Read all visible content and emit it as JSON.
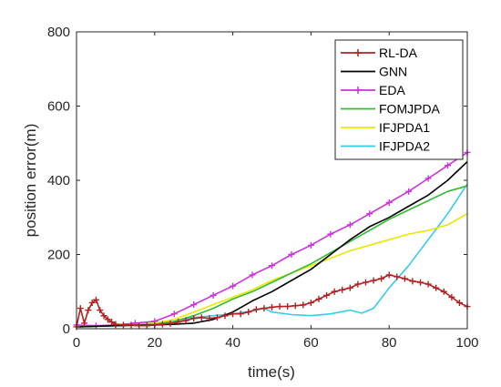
{
  "chart_data": {
    "type": "line",
    "title": "",
    "xlabel": "time(s)",
    "ylabel": "position error(m)",
    "xlim": [
      0,
      100
    ],
    "ylim": [
      0,
      800
    ],
    "xticks": [
      0,
      20,
      40,
      60,
      80,
      100
    ],
    "yticks": [
      0,
      200,
      400,
      600,
      800
    ],
    "grid": false,
    "legend_position": "top-right",
    "series": [
      {
        "name": "RL-DA",
        "color": "#b22222",
        "marker": "plus",
        "x": [
          0,
          1,
          2,
          3,
          4,
          5,
          6,
          7,
          8,
          9,
          10,
          12,
          14,
          16,
          18,
          20,
          22,
          24,
          26,
          28,
          30,
          32,
          34,
          36,
          38,
          40,
          42,
          44,
          46,
          48,
          50,
          52,
          54,
          56,
          58,
          60,
          62,
          64,
          66,
          68,
          70,
          72,
          74,
          76,
          78,
          80,
          82,
          84,
          86,
          88,
          90,
          92,
          94,
          96,
          98,
          100
        ],
        "y": [
          5,
          55,
          15,
          50,
          70,
          78,
          50,
          35,
          25,
          18,
          12,
          10,
          10,
          8,
          8,
          10,
          12,
          14,
          18,
          22,
          28,
          30,
          28,
          30,
          35,
          40,
          40,
          45,
          52,
          55,
          58,
          60,
          60,
          62,
          64,
          70,
          80,
          90,
          100,
          105,
          110,
          120,
          125,
          130,
          135,
          145,
          140,
          135,
          128,
          125,
          120,
          110,
          100,
          85,
          70,
          60
        ]
      },
      {
        "name": "GNN",
        "color": "#000000",
        "marker": "none",
        "x": [
          0,
          10,
          20,
          25,
          30,
          35,
          40,
          45,
          50,
          55,
          60,
          65,
          70,
          75,
          80,
          85,
          90,
          95,
          100
        ],
        "y": [
          5,
          8,
          10,
          12,
          15,
          25,
          45,
          75,
          100,
          130,
          160,
          200,
          240,
          275,
          300,
          330,
          360,
          400,
          450
        ]
      },
      {
        "name": "EDA",
        "color": "#cc33dd",
        "marker": "plus",
        "x": [
          0,
          5,
          10,
          15,
          20,
          25,
          30,
          35,
          40,
          45,
          50,
          55,
          60,
          65,
          70,
          75,
          80,
          85,
          90,
          95,
          100
        ],
        "y": [
          10,
          8,
          10,
          15,
          20,
          40,
          65,
          90,
          115,
          145,
          170,
          200,
          225,
          255,
          280,
          310,
          340,
          370,
          405,
          440,
          475
        ]
      },
      {
        "name": "FOMJPDA",
        "color": "#33bb33",
        "marker": "none",
        "x": [
          0,
          10,
          20,
          25,
          30,
          35,
          40,
          45,
          50,
          55,
          60,
          65,
          70,
          75,
          80,
          85,
          90,
          95,
          100
        ],
        "y": [
          5,
          8,
          12,
          20,
          35,
          55,
          80,
          100,
          125,
          150,
          175,
          205,
          235,
          265,
          295,
          320,
          345,
          370,
          385
        ]
      },
      {
        "name": "IFJPDA1",
        "color": "#e8e800",
        "marker": "none",
        "x": [
          0,
          10,
          20,
          25,
          30,
          35,
          40,
          45,
          50,
          55,
          60,
          65,
          70,
          75,
          80,
          85,
          90,
          95,
          100
        ],
        "y": [
          5,
          8,
          15,
          25,
          45,
          65,
          85,
          105,
          130,
          150,
          170,
          190,
          210,
          225,
          240,
          255,
          265,
          280,
          310
        ]
      },
      {
        "name": "IFJPDA2",
        "color": "#33ccee",
        "marker": "none",
        "x": [
          0,
          10,
          20,
          25,
          30,
          35,
          40,
          45,
          48,
          50,
          55,
          60,
          65,
          70,
          73,
          76,
          80,
          85,
          90,
          95,
          100
        ],
        "y": [
          5,
          8,
          12,
          20,
          30,
          35,
          40,
          48,
          55,
          45,
          38,
          35,
          40,
          50,
          42,
          55,
          110,
          170,
          240,
          310,
          390
        ]
      }
    ]
  }
}
